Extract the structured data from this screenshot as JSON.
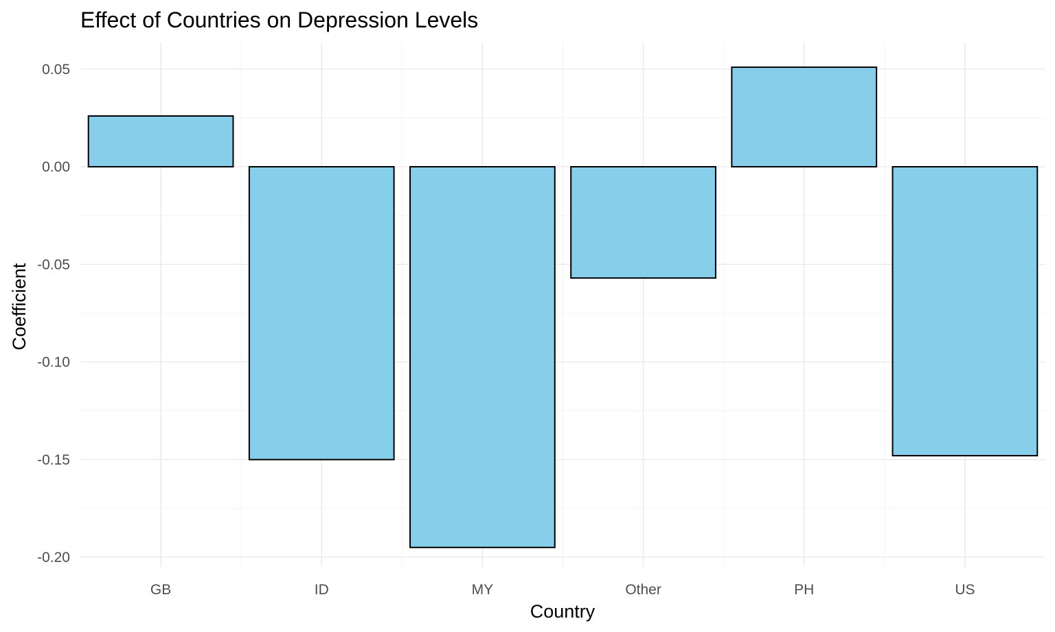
{
  "chart_data": {
    "type": "bar",
    "title": "Effect of Countries on Depression Levels",
    "xlabel": "Country",
    "ylabel": "Coefficient",
    "categories": [
      "GB",
      "ID",
      "MY",
      "Other",
      "PH",
      "US"
    ],
    "values": [
      0.026,
      -0.15,
      -0.195,
      -0.057,
      0.051,
      -0.148
    ],
    "ylim": [
      -0.2,
      0.05
    ],
    "yticks": [
      0.05,
      0.0,
      -0.05,
      -0.1,
      -0.15,
      -0.2
    ],
    "ytick_labels": [
      "0.05",
      "0.00",
      "-0.05",
      "-0.10",
      "-0.15",
      "-0.20"
    ],
    "grid": true,
    "bar_color": "#87ceeb",
    "bar_outline": "#000000"
  }
}
